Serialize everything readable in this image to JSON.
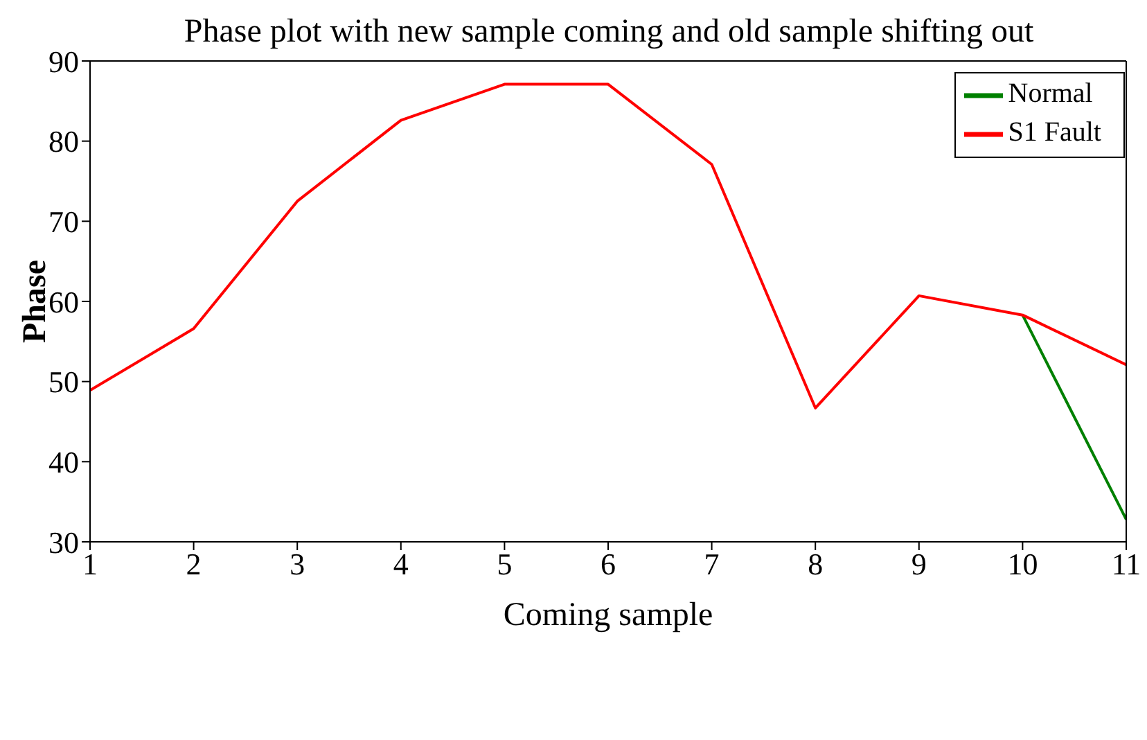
{
  "chart_data": {
    "type": "line",
    "title": "Phase plot with new sample coming and old sample shifting out",
    "xlabel": "Coming sample",
    "ylabel": "Phase",
    "x": [
      1,
      2,
      3,
      4,
      5,
      6,
      7,
      8,
      9,
      10,
      11
    ],
    "series": [
      {
        "name": "Normal",
        "color": "#008000",
        "values": [
          null,
          null,
          null,
          null,
          null,
          null,
          null,
          null,
          null,
          58.3,
          32.8
        ]
      },
      {
        "name": "S1 Fault",
        "color": "#ff0000",
        "values": [
          48.9,
          56.6,
          72.5,
          82.6,
          87.1,
          87.1,
          77.1,
          46.7,
          60.7,
          58.3,
          52.1
        ]
      }
    ],
    "xlim": [
      1,
      11
    ],
    "xticks": [
      1,
      2,
      3,
      4,
      5,
      6,
      7,
      8,
      9,
      10,
      11
    ],
    "ylim": [
      30,
      90
    ],
    "yticks": [
      30,
      40,
      50,
      60,
      70,
      80,
      90
    ],
    "grid": false,
    "legend": "top right",
    "marker": "none",
    "line_style": "solid"
  }
}
